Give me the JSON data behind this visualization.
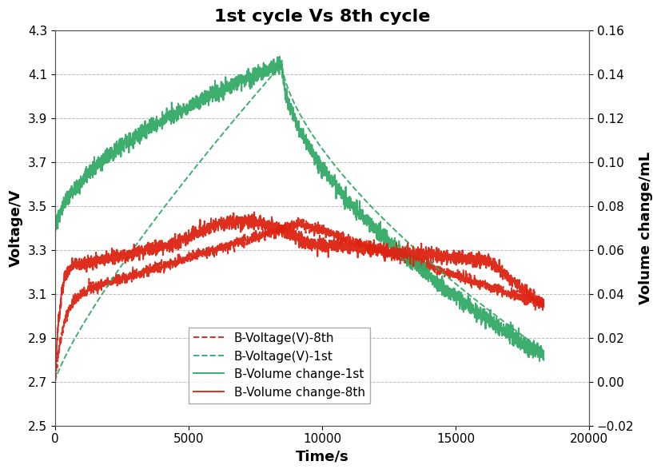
{
  "title": "1st cycle Vs 8th cycle",
  "xlabel": "Time/s",
  "ylabel_left": "Voltage/V",
  "ylabel_right": "Volume change/mL",
  "xlim": [
    0,
    20000
  ],
  "ylim_left": [
    2.5,
    4.3
  ],
  "ylim_right": [
    -0.02,
    0.16
  ],
  "yticks_left": [
    2.5,
    2.7,
    2.9,
    3.1,
    3.3,
    3.5,
    3.7,
    3.9,
    4.1,
    4.3
  ],
  "yticks_right": [
    -0.02,
    0,
    0.02,
    0.04,
    0.06,
    0.08,
    0.1,
    0.12,
    0.14,
    0.16
  ],
  "xticks": [
    0,
    5000,
    10000,
    15000,
    20000
  ],
  "legend_labels": [
    "B-Voltage(V)-8th",
    "B-Voltage(V)-1st",
    "B-Volume change-1st",
    "B-Volume change-8th"
  ],
  "color_red": "#dd2211",
  "color_green": "#33aa66",
  "background_color": "#ffffff",
  "grid_color": "#bbbbbb",
  "title_fontsize": 16,
  "axis_label_fontsize": 13,
  "tick_fontsize": 11,
  "legend_fontsize": 11
}
